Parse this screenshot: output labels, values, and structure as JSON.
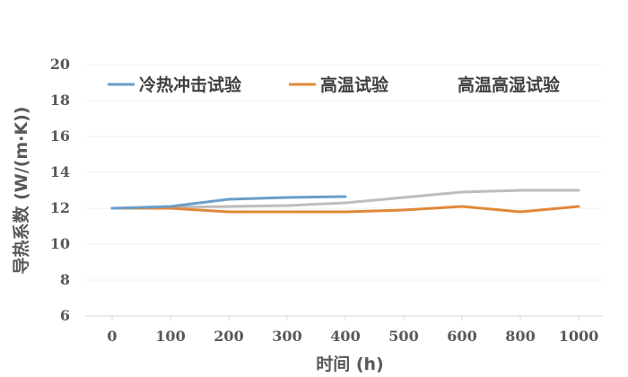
{
  "chart_data": {
    "type": "line",
    "xlabel": "时间 (h)",
    "ylabel": "导热系数 (W/(m·K))",
    "categories": [
      "0",
      "100",
      "200",
      "300",
      "400",
      "500",
      "600",
      "800",
      "1000"
    ],
    "ylim": [
      6,
      20
    ],
    "yticks": [
      "6",
      "8",
      "10",
      "12",
      "14",
      "16",
      "18",
      "20"
    ],
    "grid": false,
    "legend_position": "top",
    "series": [
      {
        "name": "冷热冲击试验",
        "color": "#6a9ec9",
        "values": [
          12.0,
          12.1,
          12.5,
          12.6,
          12.65,
          null,
          null,
          null,
          null
        ]
      },
      {
        "name": "高温试验",
        "color": "#e0893a",
        "values": [
          12.0,
          12.0,
          11.8,
          11.8,
          11.8,
          11.9,
          12.1,
          11.8,
          12.1
        ]
      },
      {
        "name": "高温高湿试验",
        "color": "#bdbdbd",
        "values": [
          12.0,
          12.05,
          12.1,
          12.15,
          12.3,
          12.6,
          12.9,
          13.0,
          13.0
        ]
      }
    ]
  }
}
